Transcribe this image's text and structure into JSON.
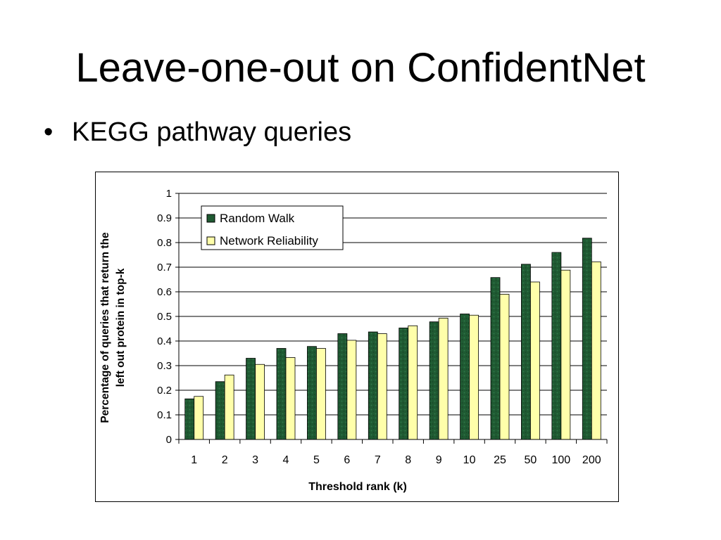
{
  "slide": {
    "title": "Leave-one-out on ConfidentNet",
    "bullet": "KEGG pathway queries"
  },
  "colors": {
    "random_walk": "#1f5a32",
    "network_reliability": "#ffffaa"
  },
  "chart_data": {
    "type": "bar",
    "title": "",
    "xlabel": "Threshold rank (k)",
    "ylabel_lines": [
      "Percentage of queries that return the",
      "left out protein in top-k"
    ],
    "categories": [
      "1",
      "2",
      "3",
      "4",
      "5",
      "6",
      "7",
      "8",
      "9",
      "10",
      "25",
      "50",
      "100",
      "200"
    ],
    "ylim": [
      0,
      1
    ],
    "yticks": [
      "0",
      "0.1",
      "0.2",
      "0.3",
      "0.4",
      "0.5",
      "0.6",
      "0.7",
      "0.8",
      "0.9",
      "1"
    ],
    "grid": true,
    "legend_position": "top-left",
    "series": [
      {
        "name": "Random Walk",
        "values": [
          0.165,
          0.235,
          0.33,
          0.37,
          0.378,
          0.43,
          0.437,
          0.453,
          0.478,
          0.51,
          0.658,
          0.712,
          0.76,
          0.818
        ]
      },
      {
        "name": "Network Reliability",
        "values": [
          0.175,
          0.262,
          0.305,
          0.333,
          0.37,
          0.403,
          0.43,
          0.462,
          0.493,
          0.505,
          0.59,
          0.64,
          0.688,
          0.722
        ]
      }
    ]
  }
}
